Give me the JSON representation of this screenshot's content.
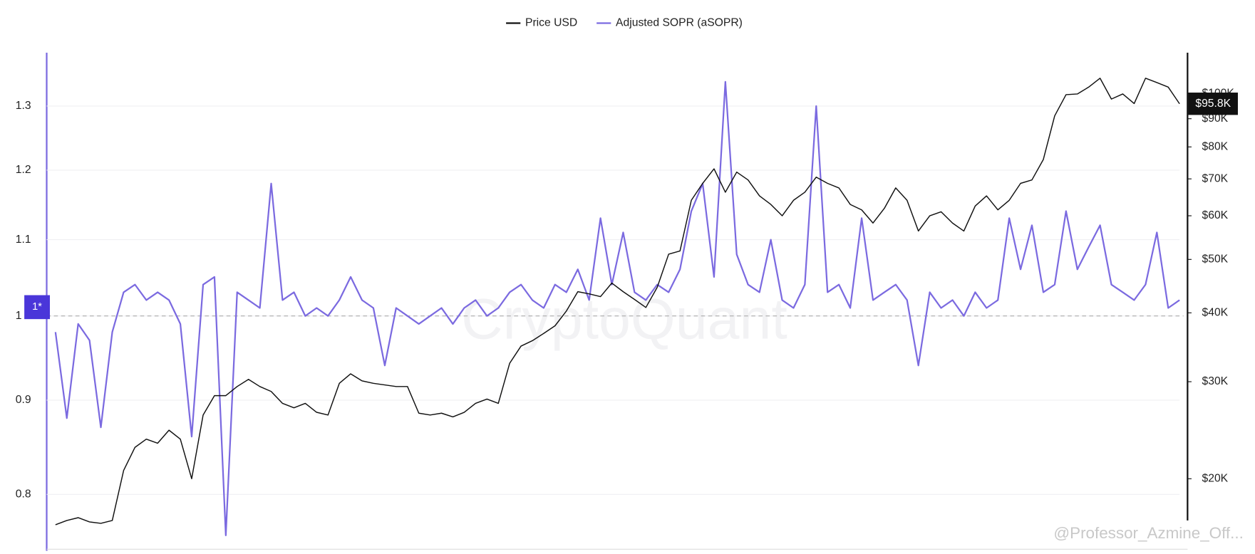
{
  "chart_data": {
    "type": "line",
    "legend_position": "top",
    "grid": true,
    "ylog": true,
    "y2log": true,
    "ylim": [
      0.747,
      1.387
    ],
    "yticks": [
      0.8,
      0.9,
      1,
      1.1,
      1.2,
      1.3
    ],
    "y2lim": [
      14900,
      117800
    ],
    "y2ticks": [
      {
        "value": 20000,
        "label": "$20K"
      },
      {
        "value": 30000,
        "label": "$30K"
      },
      {
        "value": 40000,
        "label": "$40K"
      },
      {
        "value": 50000,
        "label": "$50K"
      },
      {
        "value": 60000,
        "label": "$60K"
      },
      {
        "value": 70000,
        "label": "$70K"
      },
      {
        "value": 80000,
        "label": "$80K"
      },
      {
        "value": 90000,
        "label": "$90K"
      },
      {
        "value": 100000,
        "label": "$100K"
      }
    ],
    "reference_line": {
      "value": 1,
      "label": "1*"
    },
    "last_value_label": {
      "value": 95800,
      "label": "$95.8K"
    },
    "watermark": "CryptoQuant",
    "credit": "@Professor_Azmine_Off...",
    "categories": [
      null,
      null,
      null,
      null,
      null,
      null,
      null,
      null,
      null,
      null,
      null,
      null,
      null,
      null,
      null,
      null,
      null,
      null,
      null,
      null,
      null,
      null,
      null,
      null,
      null,
      null,
      null,
      null,
      null,
      null,
      null,
      null,
      null,
      null,
      null,
      null,
      null,
      null,
      null,
      null,
      null,
      null,
      null,
      null,
      null,
      null,
      null,
      null,
      null,
      null,
      null,
      null,
      null,
      null,
      null,
      null,
      null,
      null,
      null,
      null,
      null,
      null,
      null,
      null,
      null,
      null,
      null,
      null,
      null,
      null,
      null,
      null,
      null,
      null,
      null,
      null,
      null,
      null,
      null,
      null,
      null,
      null,
      null,
      null,
      null,
      null,
      null,
      null,
      null,
      null,
      null,
      null,
      null,
      null,
      null,
      null,
      null,
      null,
      null,
      null
    ],
    "series": [
      {
        "name": "Price USD",
        "color": "#111111",
        "axis": "y2",
        "values": [
          16500,
          16800,
          17000,
          16700,
          16600,
          16800,
          20700,
          22800,
          23600,
          23200,
          24500,
          23600,
          20000,
          26100,
          28300,
          28300,
          29400,
          30300,
          29400,
          28800,
          27400,
          26900,
          27400,
          26400,
          26100,
          29800,
          31000,
          30100,
          29800,
          29600,
          29400,
          29400,
          26300,
          26100,
          26300,
          25900,
          26400,
          27400,
          27900,
          27400,
          32400,
          34800,
          35600,
          36700,
          37900,
          40300,
          43700,
          43300,
          42800,
          45300,
          43700,
          42300,
          40900,
          44500,
          51100,
          51800,
          64000,
          68700,
          73000,
          66200,
          72000,
          69700,
          65200,
          62900,
          60000,
          64000,
          66200,
          70500,
          68700,
          67400,
          62900,
          61500,
          58200,
          61900,
          67400,
          64000,
          56300,
          60000,
          61000,
          58200,
          56300,
          62500,
          65200,
          61500,
          64000,
          68700,
          69700,
          75900,
          91100,
          99500,
          99800,
          102700,
          106600,
          97700,
          99800,
          95900,
          106600,
          104700,
          102700,
          95800
        ]
      },
      {
        "name": "Adjusted SOPR (aSOPR)",
        "color": "#7b6ae0",
        "values": [
          0.98,
          0.88,
          0.99,
          0.97,
          0.87,
          0.98,
          1.03,
          1.04,
          1.02,
          1.03,
          1.02,
          0.99,
          0.86,
          1.04,
          1.05,
          0.76,
          1.03,
          1.02,
          1.01,
          1.18,
          1.02,
          1.03,
          1.0,
          1.01,
          1.0,
          1.02,
          1.05,
          1.02,
          1.01,
          0.94,
          1.01,
          1.0,
          0.99,
          1.0,
          1.01,
          0.99,
          1.01,
          1.02,
          1.0,
          1.01,
          1.03,
          1.04,
          1.02,
          1.01,
          1.04,
          1.03,
          1.06,
          1.02,
          1.13,
          1.04,
          1.11,
          1.03,
          1.02,
          1.04,
          1.03,
          1.06,
          1.14,
          1.18,
          1.05,
          1.34,
          1.08,
          1.04,
          1.03,
          1.1,
          1.02,
          1.01,
          1.04,
          1.3,
          1.03,
          1.04,
          1.01,
          1.13,
          1.02,
          1.03,
          1.04,
          1.02,
          0.94,
          1.03,
          1.01,
          1.02,
          1.0,
          1.03,
          1.01,
          1.02,
          1.13,
          1.06,
          1.12,
          1.03,
          1.04,
          1.14,
          1.06,
          1.09,
          1.12,
          1.04,
          1.03,
          1.02,
          1.04,
          1.11,
          1.01,
          1.02
        ]
      }
    ]
  }
}
